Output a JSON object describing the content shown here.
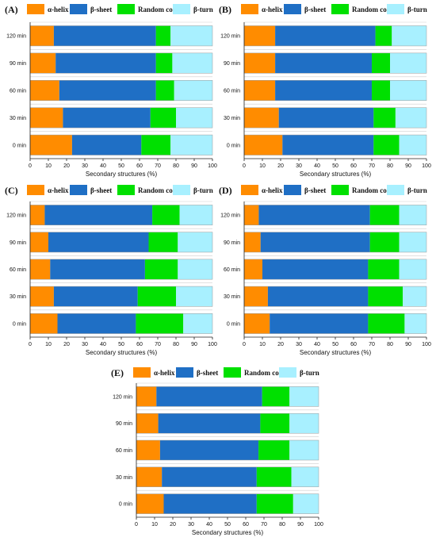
{
  "figure": {
    "legend": [
      "α-helix",
      "β-sheet",
      "Random coil",
      "β-turn"
    ],
    "colors": [
      "#ff8c00",
      "#1f6fc5",
      "#00e000",
      "#a8f0ff"
    ],
    "xlabel": "Secondary structures (%)",
    "categories": [
      "120 min",
      "90 min",
      "60 min",
      "30 min",
      "0 min"
    ],
    "xlim": [
      0,
      100
    ],
    "xticks": [
      0,
      10,
      20,
      30,
      40,
      50,
      60,
      70,
      80,
      90,
      100
    ]
  },
  "chart_data": [
    {
      "panel": "(A)",
      "type": "bar",
      "orientation": "horizontal",
      "stacked": true,
      "categories": [
        "120 min",
        "90 min",
        "60 min",
        "30 min",
        "0 min"
      ],
      "series": [
        {
          "name": "α-helix",
          "values": [
            13,
            14,
            16,
            18,
            23
          ]
        },
        {
          "name": "β-sheet",
          "values": [
            56,
            55,
            53,
            48,
            38
          ]
        },
        {
          "name": "Random coil",
          "values": [
            8,
            9,
            10,
            14,
            16
          ]
        },
        {
          "name": "β-turn",
          "values": [
            23,
            22,
            21,
            20,
            23
          ]
        }
      ],
      "xlabel": "Secondary structures (%)",
      "xlim": [
        0,
        100
      ]
    },
    {
      "panel": "(B)",
      "type": "bar",
      "orientation": "horizontal",
      "stacked": true,
      "categories": [
        "120 min",
        "90 min",
        "60 min",
        "30 min",
        "0 min"
      ],
      "series": [
        {
          "name": "α-helix",
          "values": [
            17,
            17,
            17,
            19,
            21
          ]
        },
        {
          "name": "β-sheet",
          "values": [
            55,
            53,
            53,
            52,
            50
          ]
        },
        {
          "name": "Random coil",
          "values": [
            9,
            10,
            10,
            12,
            14
          ]
        },
        {
          "name": "β-turn",
          "values": [
            19,
            20,
            20,
            17,
            15
          ]
        }
      ],
      "xlabel": "Secondary structures (%)",
      "xlim": [
        0,
        100
      ]
    },
    {
      "panel": "(C)",
      "type": "bar",
      "orientation": "horizontal",
      "stacked": true,
      "categories": [
        "120 min",
        "90 min",
        "60 min",
        "30 min",
        "0 min"
      ],
      "series": [
        {
          "name": "α-helix",
          "values": [
            8,
            10,
            11,
            13,
            15
          ]
        },
        {
          "name": "β-sheet",
          "values": [
            59,
            55,
            52,
            46,
            43
          ]
        },
        {
          "name": "Random coil",
          "values": [
            15,
            16,
            18,
            21,
            26
          ]
        },
        {
          "name": "β-turn",
          "values": [
            18,
            19,
            19,
            20,
            16
          ]
        }
      ],
      "xlabel": "Secondary structures (%)",
      "xlim": [
        0,
        100
      ]
    },
    {
      "panel": "(D)",
      "type": "bar",
      "orientation": "horizontal",
      "stacked": true,
      "categories": [
        "120 min",
        "90 min",
        "60 min",
        "30 min",
        "0 min"
      ],
      "series": [
        {
          "name": "α-helix",
          "values": [
            8,
            9,
            10,
            13,
            14
          ]
        },
        {
          "name": "β-sheet",
          "values": [
            61,
            60,
            58,
            55,
            54
          ]
        },
        {
          "name": "Random coil",
          "values": [
            16,
            16,
            17,
            19,
            20
          ]
        },
        {
          "name": "β-turn",
          "values": [
            15,
            15,
            15,
            13,
            12
          ]
        }
      ],
      "xlabel": "Secondary structures (%)",
      "xlim": [
        0,
        100
      ]
    },
    {
      "panel": "(E)",
      "type": "bar",
      "orientation": "horizontal",
      "stacked": true,
      "categories": [
        "120 min",
        "90 min",
        "60 min",
        "30 min",
        "0 min"
      ],
      "series": [
        {
          "name": "α-helix",
          "values": [
            11,
            12,
            13,
            14,
            15
          ]
        },
        {
          "name": "β-sheet",
          "values": [
            58,
            56,
            54,
            52,
            51
          ]
        },
        {
          "name": "Random coil",
          "values": [
            15,
            16,
            17,
            19,
            20
          ]
        },
        {
          "name": "β-turn",
          "values": [
            16,
            16,
            16,
            15,
            14
          ]
        }
      ],
      "xlabel": "Secondary structures (%)",
      "xlim": [
        0,
        100
      ]
    }
  ]
}
